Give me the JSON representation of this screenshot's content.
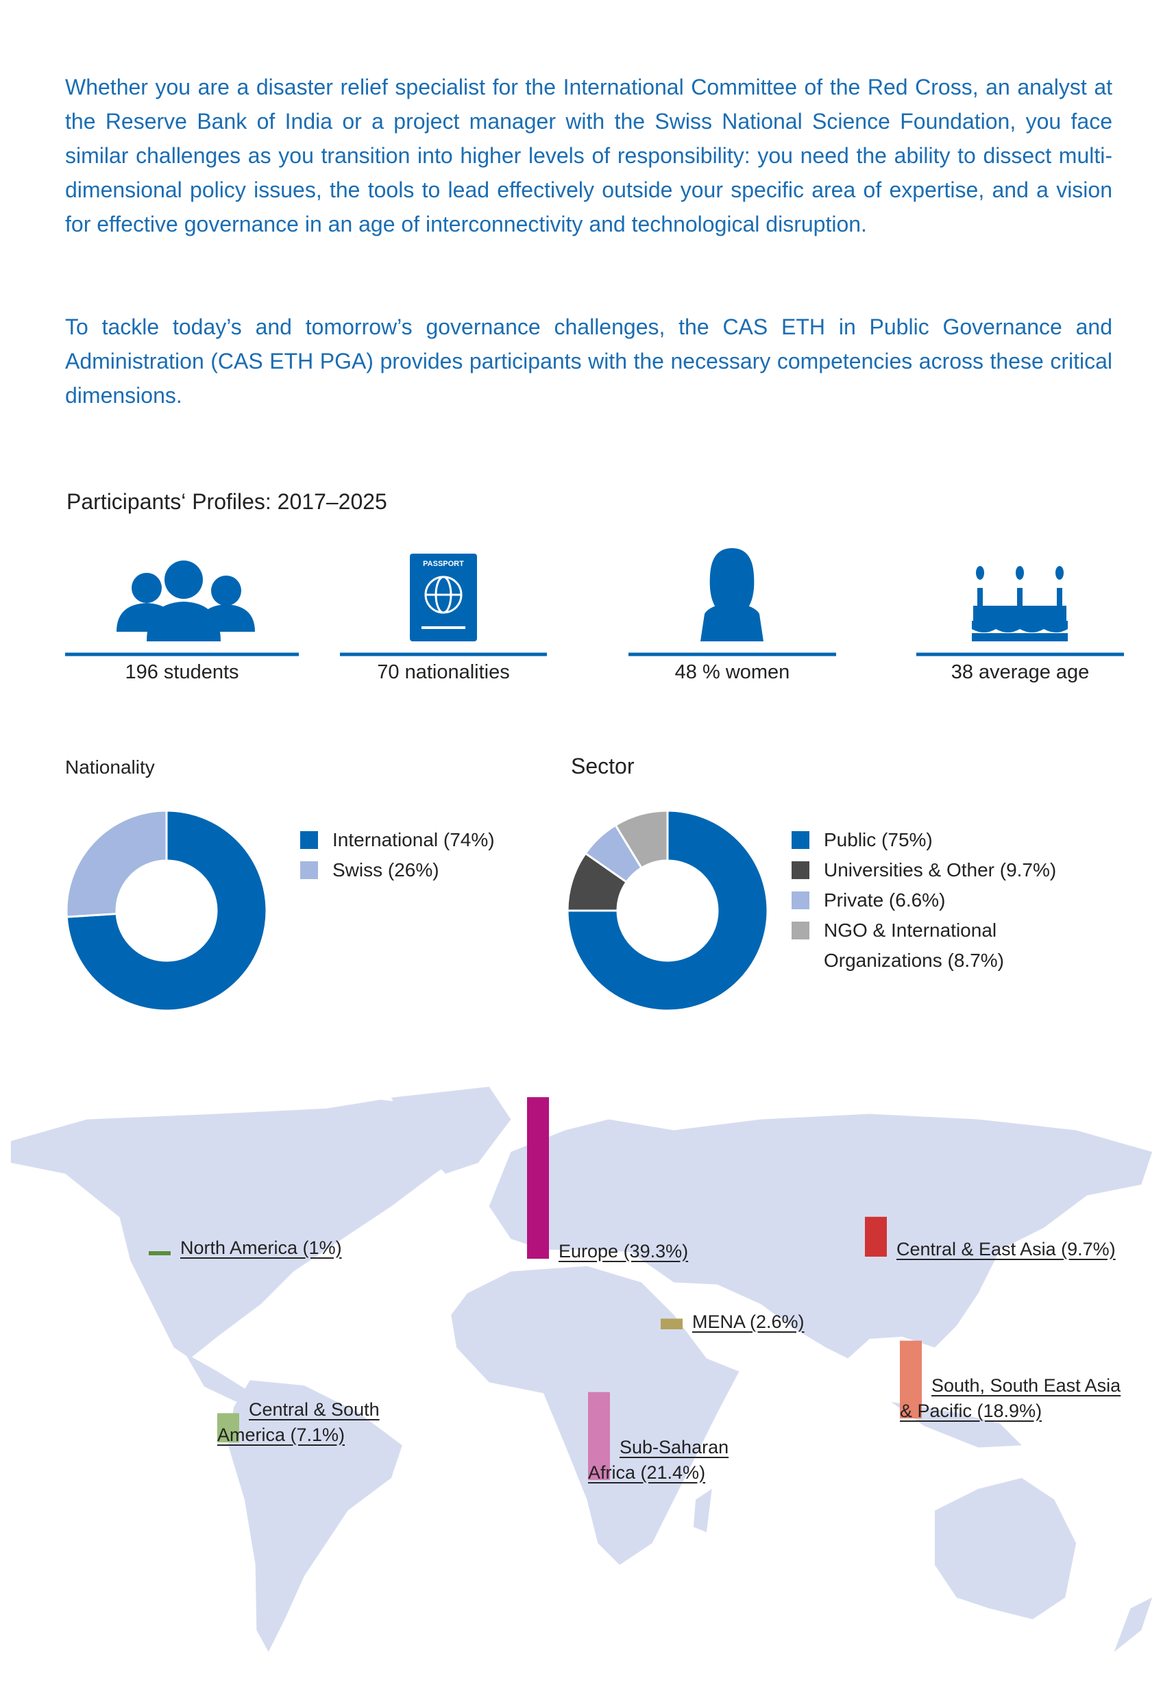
{
  "intro": {
    "paragraphs": [
      "Whether you are a disaster relief specialist for the International Committee of the Red Cross, an analyst at the Reserve Bank of India or a project manager with the Swiss National Science Foundation, you face similar challenges as you transition into higher levels of responsibility: you need the ability to dissect multi-dimensional policy issues, the tools to lead effectively outside your specific area of expertise, and a vision for effective governance in an age of interconnectivity and technological disruption.",
      "To tackle today’s and tomorrow’s governance challenges, the CAS ETH in Public Governance and Administration (CAS ETH PGA) provides participants with the necessary competencies across these critical dimensions."
    ]
  },
  "profiles": {
    "title": "Participants‘ Profiles: 2017–2025",
    "passport_icon_text": "PASSPORT",
    "stats": [
      "196 students",
      "70 nationalities",
      "48 % women",
      "38 average age"
    ]
  },
  "chart_data": [
    {
      "type": "donut",
      "title": "Nationality",
      "categories": [
        "International (74%)",
        "Swiss (26%)"
      ],
      "values": [
        74,
        26
      ],
      "colors": [
        "#0066b3",
        "#a3b7e0"
      ]
    },
    {
      "type": "donut",
      "title": "Sector",
      "categories": [
        "Public (75%)",
        "Universities & Other (9.7%)",
        "Private (6.6%)",
        "NGO & International Organizations (8.7%)"
      ],
      "values": [
        75,
        9.7,
        6.6,
        8.7
      ],
      "colors": [
        "#0066b3",
        "#4a4a4a",
        "#a3b7e0",
        "#ababab"
      ]
    },
    {
      "type": "bar",
      "categories": [
        "North America (1%)",
        "Central & South America (7.1%)",
        "Europe (39.3%)",
        "MENA (2.6%)",
        "Sub-Saharan Africa (21.4%)",
        "Central & East Asia (9.7%)",
        "South, South East Asia & Pacific (18.9%)"
      ],
      "values": [
        1,
        7.1,
        39.3,
        2.6,
        21.4,
        9.7,
        18.9
      ],
      "colors": [
        "#5a8e3a",
        "#9dbd7d",
        "#b3127d",
        "#b3a25d",
        "#d27db3",
        "#cf3434",
        "#e8836c"
      ]
    }
  ]
}
